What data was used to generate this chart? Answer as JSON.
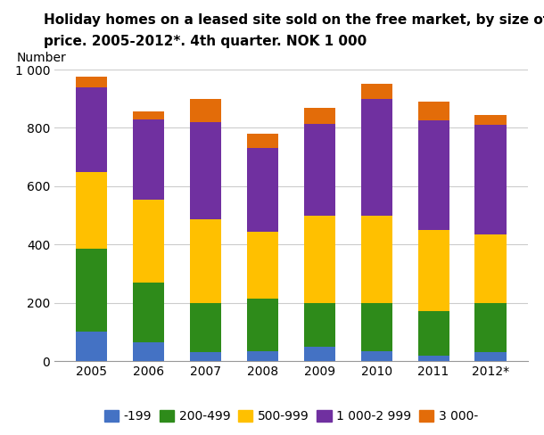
{
  "years": [
    "2005",
    "2006",
    "2007",
    "2008",
    "2009",
    "2010",
    "2011",
    "2012*"
  ],
  "series": {
    "-199": [
      100,
      65,
      30,
      35,
      50,
      35,
      20,
      30
    ],
    "200-499": [
      285,
      205,
      170,
      180,
      150,
      165,
      150,
      170
    ],
    "500-999": [
      265,
      285,
      285,
      230,
      300,
      300,
      280,
      235
    ],
    "1 000-2 999": [
      290,
      275,
      335,
      285,
      315,
      400,
      375,
      375
    ],
    "3 000-": [
      35,
      25,
      80,
      50,
      55,
      50,
      65,
      35
    ]
  },
  "colors": {
    "-199": "#4472C4",
    "200-499": "#2E8B1A",
    "500-999": "#FFC000",
    "1 000-2 999": "#7030A0",
    "3 000-": "#E36C09"
  },
  "title_line1": "Holiday homes on a leased site sold on the free market, by size of purchase",
  "title_line2": "price. 2005-2012*. 4th quarter. NOK 1 000",
  "ylabel": "Number",
  "ylim": [
    0,
    1000
  ],
  "ytick_values": [
    0,
    200,
    400,
    600,
    800,
    1000
  ],
  "ytick_labels": [
    "0",
    "200",
    "400",
    "600",
    "800",
    "1 000"
  ],
  "legend_labels": [
    "-199",
    "200-499",
    "500-999",
    "1 000-2 999",
    "3 000-"
  ],
  "bar_width": 0.55,
  "title_fontsize": 11,
  "tick_fontsize": 10,
  "ylabel_fontsize": 10,
  "legend_fontsize": 10,
  "background_color": "#ffffff",
  "grid_color": "#cccccc"
}
